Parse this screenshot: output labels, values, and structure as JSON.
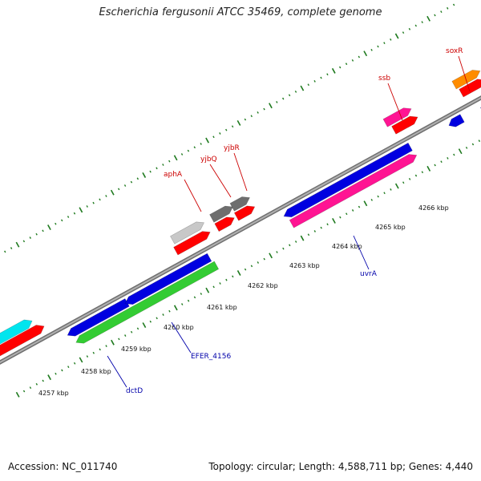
{
  "title": "Escherichia fergusonii ATCC 35469, complete genome",
  "accession_text": "Accession: NC_011740",
  "summary_text": "Topology: circular; Length: 4,588,711 bp; Genes: 4,440",
  "colors": {
    "backbone": "#8c8c8c",
    "tick_green": "#1f7a1f",
    "label_red": "#cc0000",
    "label_blue": "#0000aa"
  },
  "scale": {
    "unit": "kbp",
    "ticks": [
      "4257 kbp",
      "4258 kbp",
      "4259 kbp",
      "4260 kbp",
      "4261 kbp",
      "4262 kbp",
      "4263 kbp",
      "4264 kbp",
      "4265 kbp",
      "4266 kbp"
    ]
  },
  "gene_labels": [
    {
      "text": "soxR",
      "color": "red"
    },
    {
      "text": "ssb",
      "color": "red"
    },
    {
      "text": "yjbR",
      "color": "red"
    },
    {
      "text": "yjbQ",
      "color": "red"
    },
    {
      "text": "aphA",
      "color": "red"
    },
    {
      "text": "uvrA",
      "color": "blue"
    },
    {
      "text": "EFER_4156",
      "color": "blue"
    },
    {
      "text": "dctD",
      "color": "blue"
    }
  ],
  "features": [
    {
      "color": "#00e5ee"
    },
    {
      "color": "#ff0000"
    },
    {
      "color": "#0000e0"
    },
    {
      "color": "#33cc33"
    },
    {
      "color": "#c8c8c8"
    },
    {
      "color": "#6e6e6e"
    },
    {
      "color": "#ff1493"
    },
    {
      "color": "#ff8c00"
    }
  ]
}
